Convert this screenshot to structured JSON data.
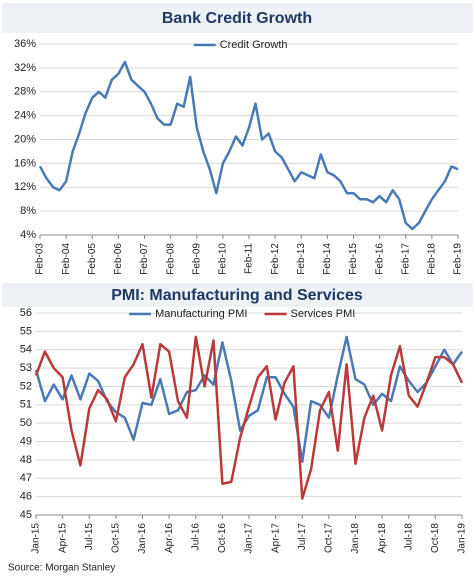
{
  "chart_data": [
    {
      "type": "line",
      "title": "Bank Credit Growth",
      "categories": [
        "Feb-03",
        null,
        null,
        null,
        "Feb-04",
        null,
        null,
        null,
        "Feb-05",
        null,
        null,
        null,
        "Feb-06",
        null,
        null,
        null,
        "Feb-07",
        null,
        null,
        null,
        "Feb-08",
        null,
        null,
        null,
        "Feb-09",
        null,
        null,
        null,
        "Feb-10",
        null,
        null,
        null,
        "Feb-11",
        null,
        null,
        null,
        "Feb-12",
        null,
        null,
        null,
        "Feb-13",
        null,
        null,
        null,
        "Feb-14",
        null,
        null,
        null,
        "Feb-15",
        null,
        null,
        null,
        "Feb-16",
        null,
        null,
        null,
        "Feb-17",
        null,
        null,
        null,
        "Feb-18",
        null,
        null,
        null,
        "Feb-19"
      ],
      "series": [
        {
          "name": "Credit Growth",
          "color": "#4a7ab5",
          "values": [
            15.5,
            13.5,
            12,
            11.5,
            13,
            18,
            21,
            24.5,
            27,
            28,
            27,
            30,
            31,
            33,
            30,
            29,
            28,
            26,
            23.5,
            22.5,
            22.5,
            26,
            25.5,
            30.5,
            22,
            18,
            15,
            11,
            16,
            18,
            20.5,
            19,
            22,
            26,
            20,
            21,
            18,
            17,
            15,
            13,
            14.5,
            14,
            13.5,
            17.5,
            14.5,
            14,
            13,
            11,
            11,
            10,
            10,
            9.5,
            10.5,
            9.5,
            11.5,
            10,
            6,
            5,
            6,
            8,
            10,
            11.5,
            13,
            15.5,
            15
          ]
        }
      ],
      "ylim": [
        4,
        36
      ],
      "yticks": [
        {
          "value": 4,
          "label": "4%"
        },
        {
          "value": 8,
          "label": "8%"
        },
        {
          "value": 12,
          "label": "12%"
        },
        {
          "value": 16,
          "label": "16%"
        },
        {
          "value": 20,
          "label": "20%"
        },
        {
          "value": 24,
          "label": "24%"
        },
        {
          "value": 28,
          "label": "28%"
        },
        {
          "value": 32,
          "label": "32%"
        },
        {
          "value": 36,
          "label": "36%"
        }
      ],
      "grid": true,
      "legend": "top"
    },
    {
      "type": "line",
      "title": "PMI: Manufacturing and Services",
      "categories": [
        "Jan-15",
        null,
        null,
        "Apr-15",
        null,
        null,
        "Jul-15",
        null,
        null,
        "Oct-15",
        null,
        null,
        "Jan-16",
        null,
        null,
        "Apr-16",
        null,
        null,
        "Jul-16",
        null,
        null,
        "Oct-16",
        null,
        null,
        "Jan-17",
        null,
        null,
        "Apr-17",
        null,
        null,
        "Jul-17",
        null,
        null,
        "Oct-17",
        null,
        null,
        "Jan-18",
        null,
        null,
        "Apr-18",
        null,
        null,
        "Jul-18",
        null,
        null,
        "Oct-18",
        null,
        null,
        "Jan-19"
      ],
      "series": [
        {
          "name": "Manufacturing PMI",
          "color": "#4a7ab5",
          "values": [
            52.9,
            51.2,
            52.1,
            51.3,
            52.6,
            51.3,
            52.7,
            52.3,
            51.2,
            50.6,
            50.3,
            49.1,
            51.1,
            51.0,
            52.4,
            50.5,
            50.7,
            51.7,
            51.8,
            52.6,
            52.1,
            54.4,
            52.3,
            49.6,
            50.4,
            50.7,
            52.5,
            52.5,
            51.6,
            50.9,
            47.9,
            51.2,
            51.0,
            50.3,
            52.6,
            54.7,
            52.4,
            52.1,
            51.0,
            51.6,
            51.2,
            53.1,
            52.3,
            51.7,
            52.2,
            53.1,
            54.0,
            53.2,
            53.9
          ]
        },
        {
          "name": "Services PMI",
          "color": "#b83a3a",
          "values": [
            52.6,
            53.9,
            53.0,
            52.5,
            49.6,
            47.7,
            50.8,
            51.8,
            51.3,
            50.1,
            52.5,
            53.2,
            54.3,
            51.4,
            54.3,
            53.9,
            51.2,
            50.3,
            54.7,
            52.0,
            54.5,
            46.7,
            46.8,
            49.2,
            50.9,
            52.5,
            53.1,
            50.2,
            52.2,
            53.1,
            45.9,
            47.5,
            50.7,
            51.7,
            48.5,
            53.2,
            47.8,
            50.3,
            51.5,
            49.6,
            52.6,
            54.2,
            51.5,
            50.9,
            52.2,
            53.6,
            53.6,
            53.2,
            52.2
          ]
        }
      ],
      "ylim": [
        45,
        56
      ],
      "yticks": [
        45,
        46,
        47,
        48,
        49,
        50,
        51,
        52,
        53,
        54,
        55,
        56
      ],
      "grid": true,
      "legend": "top"
    }
  ],
  "source": "Source: Morgan Stanley"
}
